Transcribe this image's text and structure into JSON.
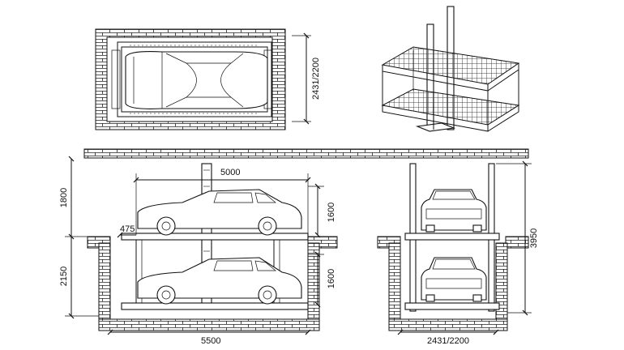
{
  "drawing": {
    "labels": {
      "plan_width": "2431/2200",
      "length_top": "5000",
      "height_upper": "1800",
      "height_lower": "2150",
      "offset": "475",
      "level_upper": "1600",
      "level_lower": "1600",
      "pit_length": "5500",
      "total_height": "3950",
      "pit_width": "2431/2200"
    }
  }
}
